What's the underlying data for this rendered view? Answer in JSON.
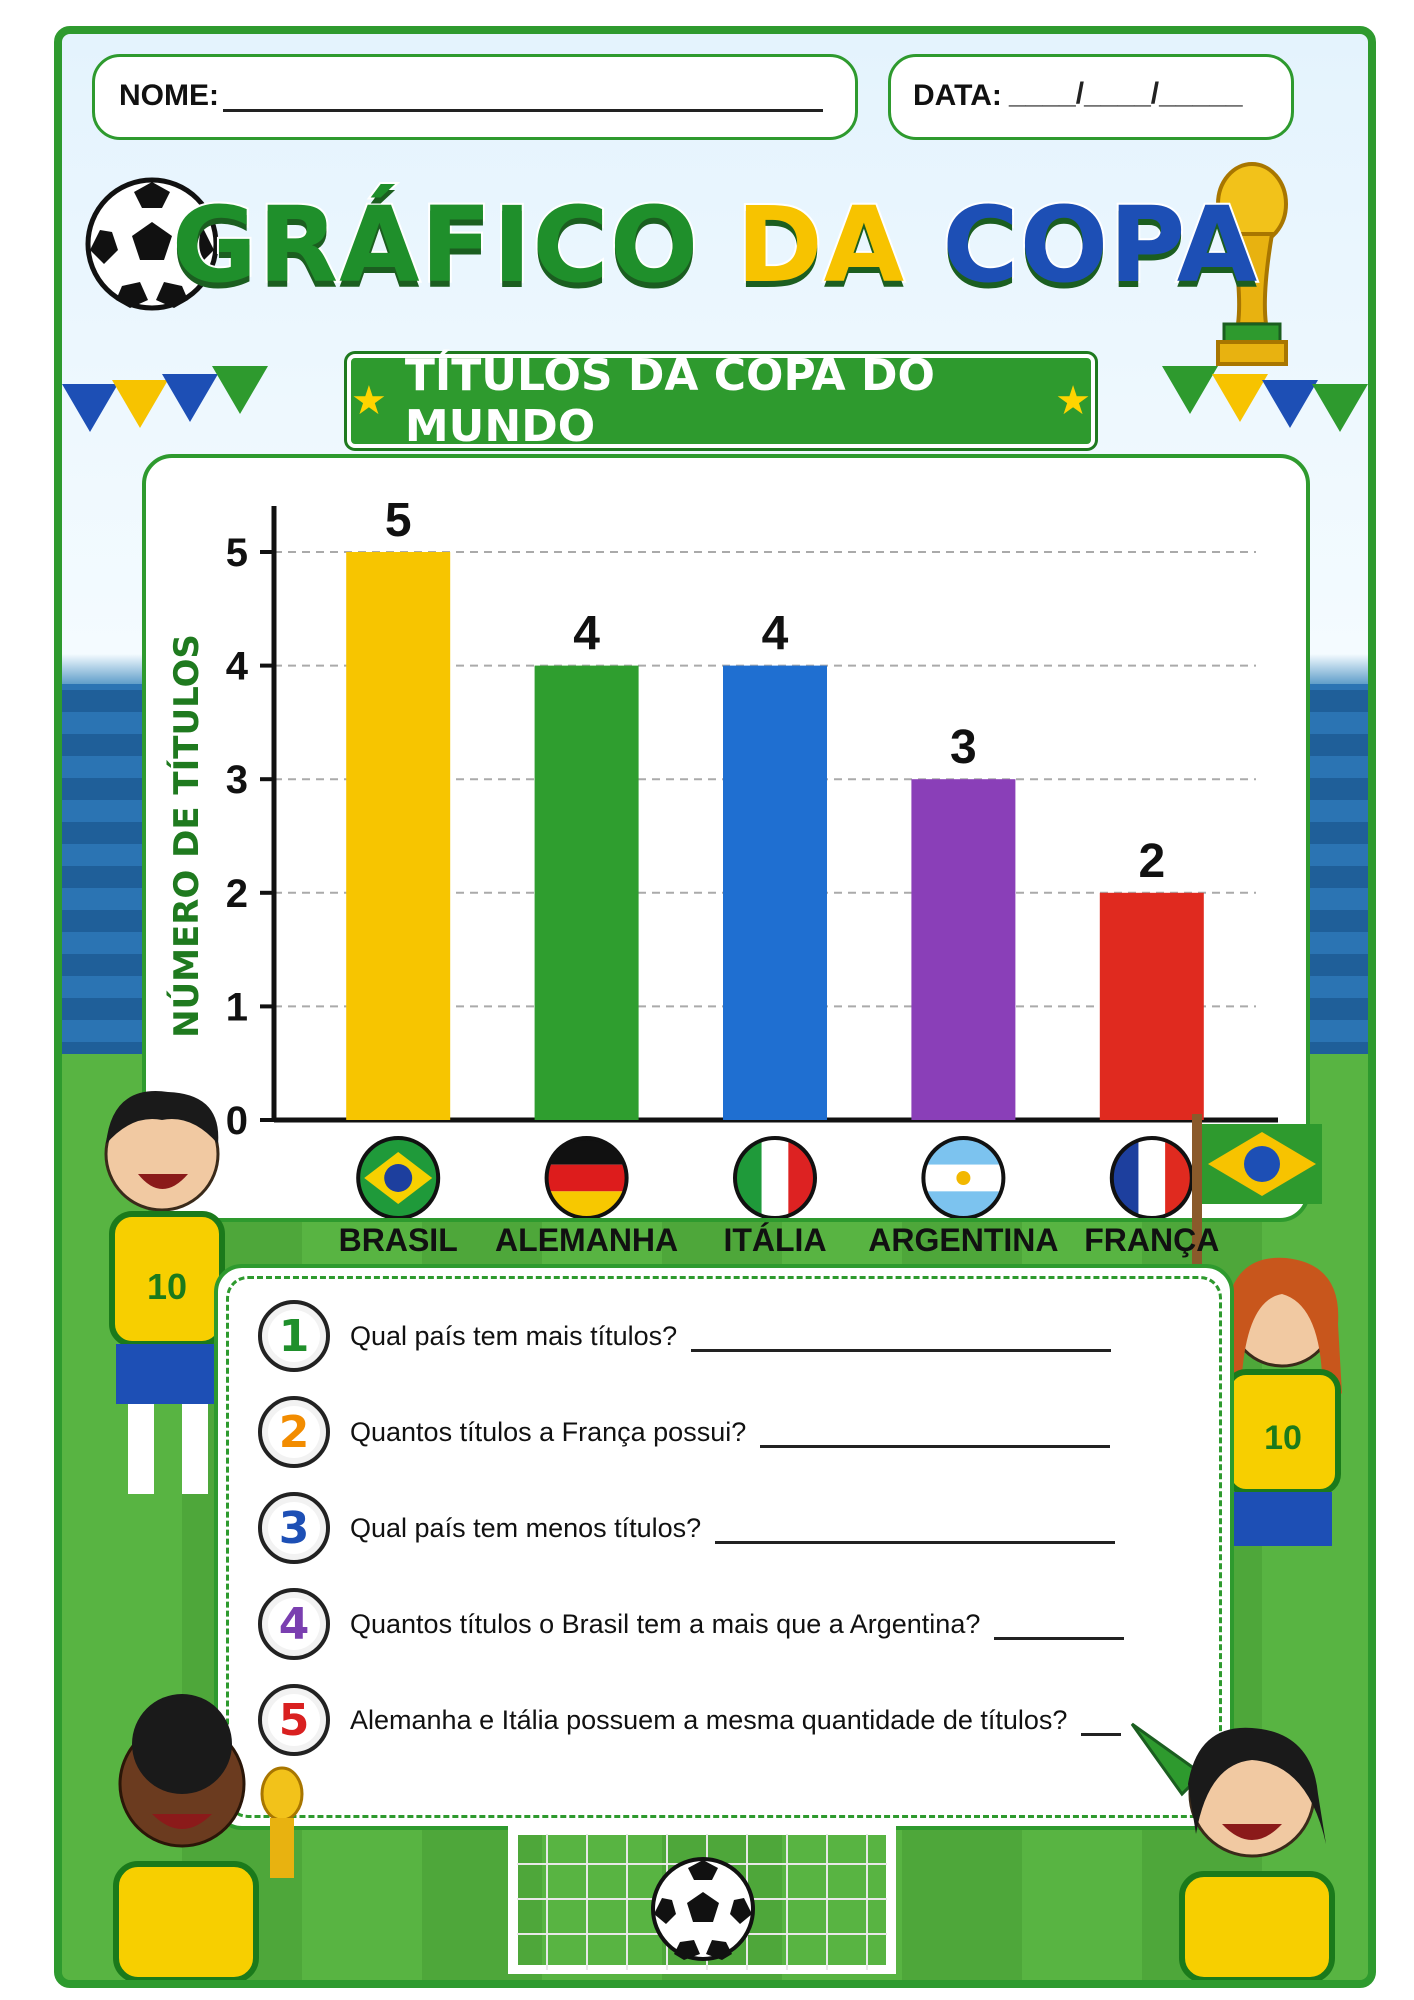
{
  "header": {
    "name_label": "NOME:",
    "date_label": "DATA:",
    "date_blank": "____/____/_____"
  },
  "title": {
    "word1": "GRÁFICO",
    "word2": "DA",
    "word3": "COPA",
    "color1": "#1f8f2b",
    "color2": "#f7c300",
    "color3": "#1d4fb5"
  },
  "banner": {
    "text": "TÍTULOS DA COPA DO MUNDO",
    "star": "★"
  },
  "chart_data": {
    "type": "bar",
    "categories": [
      "BRASIL",
      "ALEMANHA",
      "ITÁLIA",
      "ARGENTINA",
      "FRANÇA"
    ],
    "values": [
      5,
      4,
      4,
      3,
      2
    ],
    "colors": [
      "#f7c500",
      "#2f9e2f",
      "#1f6fd1",
      "#8a3fb8",
      "#e02a1f"
    ],
    "data_labels": [
      "5",
      "4",
      "4",
      "3",
      "2"
    ],
    "ylabel": "NÚMERO DE TÍTULOS",
    "xlabel": "",
    "ylim": [
      0,
      5
    ],
    "yticks": [
      "0",
      "1",
      "2",
      "3",
      "4",
      "5"
    ],
    "grid": true,
    "flags": [
      "brazil-flag",
      "germany-flag",
      "italy-flag",
      "argentina-flag",
      "france-flag"
    ]
  },
  "questions": [
    {
      "num": "1",
      "text": "Qual país tem mais títulos?",
      "color": "#1f8f2b"
    },
    {
      "num": "2",
      "text": "Quantos títulos a França possui?",
      "color": "#f28c00"
    },
    {
      "num": "3",
      "text": "Qual país tem menos títulos?",
      "color": "#1d4fb5"
    },
    {
      "num": "4",
      "text": "Quantos títulos o Brasil tem a mais que a Argentina?",
      "color": "#7a3fb0"
    },
    {
      "num": "5",
      "text": "Alemanha e Itália possuem a mesma quantidade de títulos?",
      "color": "#d92020"
    }
  ],
  "jersey_numbers": {
    "left": "10",
    "right": "10"
  }
}
